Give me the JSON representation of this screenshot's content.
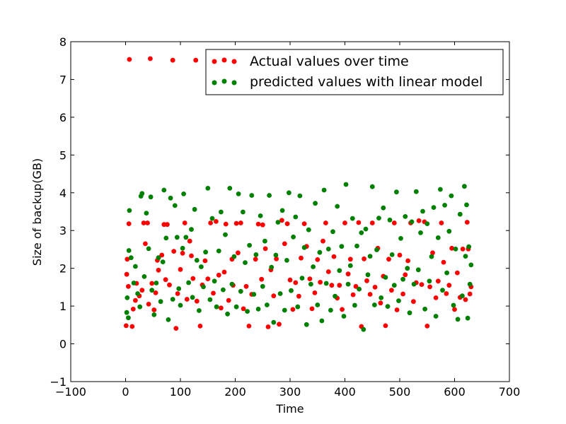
{
  "chart_data": {
    "type": "scatter",
    "title": "",
    "xlabel": "Time",
    "ylabel": "Size of backup(GB)",
    "xlim": [
      -100,
      700
    ],
    "ylim": [
      -1,
      8
    ],
    "x_ticks": [
      -100,
      0,
      100,
      200,
      300,
      400,
      500,
      600,
      700
    ],
    "y_ticks": [
      -1,
      0,
      1,
      2,
      3,
      4,
      5,
      6,
      7,
      8
    ],
    "grid": false,
    "legend_placement": "top-right",
    "series": [
      {
        "name": "Actual values over time",
        "color": "#ff0000",
        "points": [
          [
            1,
            0.48
          ],
          [
            2,
            1.84
          ],
          [
            3,
            2.24
          ],
          [
            5,
            1.52
          ],
          [
            6,
            3.18
          ],
          [
            7,
            7.53
          ],
          [
            12,
            0.46
          ],
          [
            14,
            0.92
          ],
          [
            18,
            1.15
          ],
          [
            20,
            1.6
          ],
          [
            25,
            1.27
          ],
          [
            30,
            1.42
          ],
          [
            33,
            3.2
          ],
          [
            36,
            2.65
          ],
          [
            40,
            3.2
          ],
          [
            42,
            1.05
          ],
          [
            45,
            7.55
          ],
          [
            48,
            1.6
          ],
          [
            52,
            0.9
          ],
          [
            55,
            1.35
          ],
          [
            58,
            2.21
          ],
          [
            60,
            1.95
          ],
          [
            66,
            2.35
          ],
          [
            70,
            3.16
          ],
          [
            73,
            1.7
          ],
          [
            76,
            3.16
          ],
          [
            80,
            1.56
          ],
          [
            86,
            7.51
          ],
          [
            88,
            2.45
          ],
          [
            92,
            0.41
          ],
          [
            95,
            1.33
          ],
          [
            100,
            1.97
          ],
          [
            104,
            2.4
          ],
          [
            108,
            3.2
          ],
          [
            112,
            1.18
          ],
          [
            117,
            2.72
          ],
          [
            120,
            2.33
          ],
          [
            123,
            1.73
          ],
          [
            128,
            7.51
          ],
          [
            130,
            1.13
          ],
          [
            136,
            0.47
          ],
          [
            140,
            1.56
          ],
          [
            145,
            2.2
          ],
          [
            150,
            1.72
          ],
          [
            155,
            3.2
          ],
          [
            160,
            1.34
          ],
          [
            165,
            3.24
          ],
          [
            170,
            1.82
          ],
          [
            174,
            0.95
          ],
          [
            180,
            1.9
          ],
          [
            183,
            3.17
          ],
          [
            188,
            1.15
          ],
          [
            194,
            2.24
          ],
          [
            196,
            1.55
          ],
          [
            202,
            3.19
          ],
          [
            205,
            2.41
          ],
          [
            210,
            3.2
          ],
          [
            215,
            0.93
          ],
          [
            220,
            1.52
          ],
          [
            225,
            0.47
          ],
          [
            230,
            1.31
          ],
          [
            237,
            2.24
          ],
          [
            242,
            3.17
          ],
          [
            248,
            1.71
          ],
          [
            250,
            3.15
          ],
          [
            255,
            2.52
          ],
          [
            260,
            0.45
          ],
          [
            265,
            1.96
          ],
          [
            270,
            1.27
          ],
          [
            275,
            2.25
          ],
          [
            280,
            0.52
          ],
          [
            285,
            3.27
          ],
          [
            290,
            2.65
          ],
          [
            295,
            3.18
          ],
          [
            300,
            1.69
          ],
          [
            305,
            0.91
          ],
          [
            310,
            1.62
          ],
          [
            316,
            1.26
          ],
          [
            320,
            2.27
          ],
          [
            326,
            3.18
          ],
          [
            330,
            2.58
          ],
          [
            336,
            1.72
          ],
          [
            340,
            0.93
          ],
          [
            345,
            1.35
          ],
          [
            350,
            2.23
          ],
          [
            355,
            1.63
          ],
          [
            360,
            2.72
          ],
          [
            365,
            3.2
          ],
          [
            370,
            1.91
          ],
          [
            376,
            1.55
          ],
          [
            380,
            2.31
          ],
          [
            386,
            1.21
          ],
          [
            390,
            1.55
          ],
          [
            395,
            0.91
          ],
          [
            400,
            3.2
          ],
          [
            406,
            1.85
          ],
          [
            410,
            2.24
          ],
          [
            415,
            1.3
          ],
          [
            420,
            1.52
          ],
          [
            425,
            3.21
          ],
          [
            430,
            0.46
          ],
          [
            435,
            2.25
          ],
          [
            440,
            1.67
          ],
          [
            446,
            1.31
          ],
          [
            450,
            3.2
          ],
          [
            455,
            1.5
          ],
          [
            460,
            2.53
          ],
          [
            465,
            1.08
          ],
          [
            470,
            1.79
          ],
          [
            474,
            0.48
          ],
          [
            480,
            2.24
          ],
          [
            485,
            1.42
          ],
          [
            490,
            3.2
          ],
          [
            495,
            0.9
          ],
          [
            500,
            2.35
          ],
          [
            506,
            1.32
          ],
          [
            510,
            1.83
          ],
          [
            515,
            2.2
          ],
          [
            520,
            3.2
          ],
          [
            525,
            1.12
          ],
          [
            530,
            1.62
          ],
          [
            535,
            3.26
          ],
          [
            540,
            1.57
          ],
          [
            545,
            3.23
          ],
          [
            550,
            0.47
          ],
          [
            555,
            1.51
          ],
          [
            560,
            2.41
          ],
          [
            566,
            1.22
          ],
          [
            570,
            1.66
          ],
          [
            576,
            3.2
          ],
          [
            580,
            2.16
          ],
          [
            585,
            1.33
          ],
          [
            590,
            1.55
          ],
          [
            595,
            2.53
          ],
          [
            600,
            0.91
          ],
          [
            605,
            1.88
          ],
          [
            610,
            1.23
          ],
          [
            615,
            2.51
          ],
          [
            620,
            1.17
          ],
          [
            623,
            3.22
          ],
          [
            625,
            2.51
          ],
          [
            628,
            1.32
          ],
          [
            630,
            1.51
          ]
        ]
      },
      {
        "name": "predicted values with linear model",
        "color": "#008000",
        "points": [
          [
            2,
            0.83
          ],
          [
            3,
            1.22
          ],
          [
            5,
            0.69
          ],
          [
            6,
            2.47
          ],
          [
            7,
            3.53
          ],
          [
            10,
            2.28
          ],
          [
            15,
            1.61
          ],
          [
            18,
            2.05
          ],
          [
            22,
            1.33
          ],
          [
            26,
            0.98
          ],
          [
            28,
            3.91
          ],
          [
            30,
            3.98
          ],
          [
            34,
            1.78
          ],
          [
            38,
            3.46
          ],
          [
            42,
            2.52
          ],
          [
            46,
            3.89
          ],
          [
            48,
            1.42
          ],
          [
            52,
            0.77
          ],
          [
            56,
            1.61
          ],
          [
            60,
            2.28
          ],
          [
            64,
            1.12
          ],
          [
            68,
            2.17
          ],
          [
            70,
            4.07
          ],
          [
            74,
            2.8
          ],
          [
            78,
            0.64
          ],
          [
            82,
            3.86
          ],
          [
            86,
            1.18
          ],
          [
            90,
            3.66
          ],
          [
            94,
            2.82
          ],
          [
            97,
            1.46
          ],
          [
            100,
            1.02
          ],
          [
            104,
            2.53
          ],
          [
            106,
            3.97
          ],
          [
            110,
            2.82
          ],
          [
            115,
            1.62
          ],
          [
            120,
            3.03
          ],
          [
            122,
            1.23
          ],
          [
            126,
            3.56
          ],
          [
            130,
            2.21
          ],
          [
            134,
            0.88
          ],
          [
            138,
            2.04
          ],
          [
            142,
            1.51
          ],
          [
            146,
            2.43
          ],
          [
            150,
            4.12
          ],
          [
            154,
            1.17
          ],
          [
            158,
            3.32
          ],
          [
            162,
            1.66
          ],
          [
            166,
            0.98
          ],
          [
            170,
            2.46
          ],
          [
            174,
            3.49
          ],
          [
            178,
            1.43
          ],
          [
            182,
            2.89
          ],
          [
            186,
            0.79
          ],
          [
            190,
            4.12
          ],
          [
            194,
            1.58
          ],
          [
            198,
            2.31
          ],
          [
            202,
            0.98
          ],
          [
            206,
            3.97
          ],
          [
            210,
            1.39
          ],
          [
            214,
            3.49
          ],
          [
            218,
            2.15
          ],
          [
            222,
            0.86
          ],
          [
            226,
            2.61
          ],
          [
            230,
            3.93
          ],
          [
            234,
            1.31
          ],
          [
            238,
            2.36
          ],
          [
            242,
            0.92
          ],
          [
            246,
            3.39
          ],
          [
            250,
            1.52
          ],
          [
            254,
            2.72
          ],
          [
            258,
            1.03
          ],
          [
            262,
            3.93
          ],
          [
            266,
            2.03
          ],
          [
            270,
            0.57
          ],
          [
            274,
            2.35
          ],
          [
            278,
            3.22
          ],
          [
            282,
            1.33
          ],
          [
            286,
            3.53
          ],
          [
            290,
            0.89
          ],
          [
            294,
            2.21
          ],
          [
            298,
            4.0
          ],
          [
            302,
            1.41
          ],
          [
            306,
            2.83
          ],
          [
            310,
            3.36
          ],
          [
            314,
            0.98
          ],
          [
            318,
            3.92
          ],
          [
            322,
            1.74
          ],
          [
            326,
            2.55
          ],
          [
            330,
            0.51
          ],
          [
            334,
            3.02
          ],
          [
            338,
            1.58
          ],
          [
            342,
            2.04
          ],
          [
            346,
            3.72
          ],
          [
            350,
            1.03
          ],
          [
            354,
            2.42
          ],
          [
            358,
            0.61
          ],
          [
            362,
            4.07
          ],
          [
            366,
            1.6
          ],
          [
            370,
            2.51
          ],
          [
            374,
            0.89
          ],
          [
            378,
            2.97
          ],
          [
            382,
            1.26
          ],
          [
            386,
            3.64
          ],
          [
            390,
            1.94
          ],
          [
            394,
            2.58
          ],
          [
            398,
            0.73
          ],
          [
            402,
            4.22
          ],
          [
            406,
            1.58
          ],
          [
            410,
            2.07
          ],
          [
            414,
            3.32
          ],
          [
            418,
            1.02
          ],
          [
            422,
            2.59
          ],
          [
            426,
            1.45
          ],
          [
            430,
            2.94
          ],
          [
            434,
            0.38
          ],
          [
            438,
            3.04
          ],
          [
            442,
            1.83
          ],
          [
            446,
            2.32
          ],
          [
            450,
            4.16
          ],
          [
            454,
            1.03
          ],
          [
            458,
            2.49
          ],
          [
            462,
            3.33
          ],
          [
            466,
            1.22
          ],
          [
            470,
            3.6
          ],
          [
            474,
            1.76
          ],
          [
            478,
            0.99
          ],
          [
            482,
            3.28
          ],
          [
            486,
            2.36
          ],
          [
            490,
            1.55
          ],
          [
            494,
            4.02
          ],
          [
            498,
            1.14
          ],
          [
            502,
            2.79
          ],
          [
            506,
            1.71
          ],
          [
            510,
            3.37
          ],
          [
            514,
            2.0
          ],
          [
            518,
            0.82
          ],
          [
            522,
            3.23
          ],
          [
            526,
            1.58
          ],
          [
            530,
            4.03
          ],
          [
            534,
            1.96
          ],
          [
            538,
            2.94
          ],
          [
            542,
            3.51
          ],
          [
            546,
            0.92
          ],
          [
            550,
            3.18
          ],
          [
            554,
            1.66
          ],
          [
            558,
            2.31
          ],
          [
            562,
            3.61
          ],
          [
            566,
            0.73
          ],
          [
            570,
            2.81
          ],
          [
            574,
            4.09
          ],
          [
            578,
            1.42
          ],
          [
            582,
            3.67
          ],
          [
            586,
            1.88
          ],
          [
            590,
            2.98
          ],
          [
            594,
            3.92
          ],
          [
            598,
            1.02
          ],
          [
            602,
            2.51
          ],
          [
            606,
            0.65
          ],
          [
            610,
            3.43
          ],
          [
            614,
            1.27
          ],
          [
            618,
            4.17
          ],
          [
            620,
            2.32
          ],
          [
            622,
            3.68
          ],
          [
            624,
            0.68
          ],
          [
            626,
            2.57
          ],
          [
            628,
            1.58
          ],
          [
            630,
            2.09
          ]
        ]
      }
    ]
  }
}
